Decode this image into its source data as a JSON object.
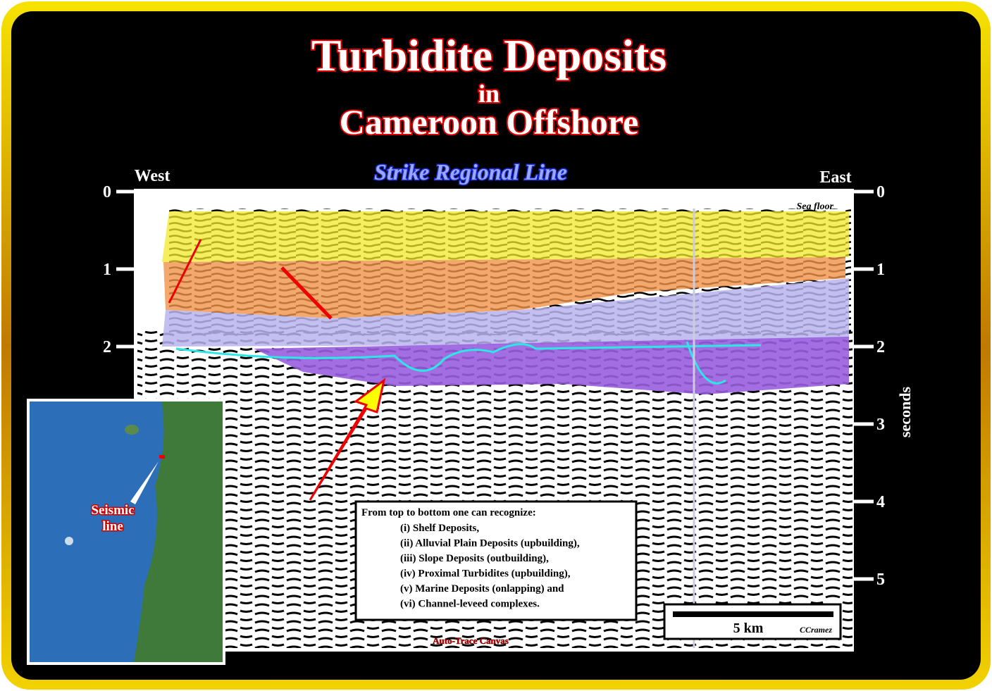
{
  "title": {
    "line1": "Turbidite Deposits",
    "line2": "in",
    "line3": "Cameroon Offshore"
  },
  "subtitle": "Strike Regional Line",
  "section": {
    "west": "West",
    "east": "East",
    "sea_floor": "Sea floor",
    "axis_label": "seconds",
    "left_ticks": [
      0,
      1,
      2
    ],
    "right_ticks": [
      0,
      1,
      2,
      3,
      4,
      5
    ]
  },
  "legend": {
    "heading": "From top to bottom one can recognize:",
    "items": [
      "(i) Shelf Deposits,",
      "(ii) Alluvial Plain Deposits (upbuilding),",
      "(iii) Slope Deposits (outbuilding),",
      "(iv) Proximal Turbidites (upbuilding),",
      "(v) Marine Deposits (onlapping) and",
      "(vi) Channel-leveed complexes."
    ]
  },
  "scale": {
    "label": "5 km",
    "credit": "CCramez"
  },
  "watermark": "Auto-Trace Canvas",
  "inset": {
    "label_line1": "Seismic",
    "label_line2": "line"
  }
}
